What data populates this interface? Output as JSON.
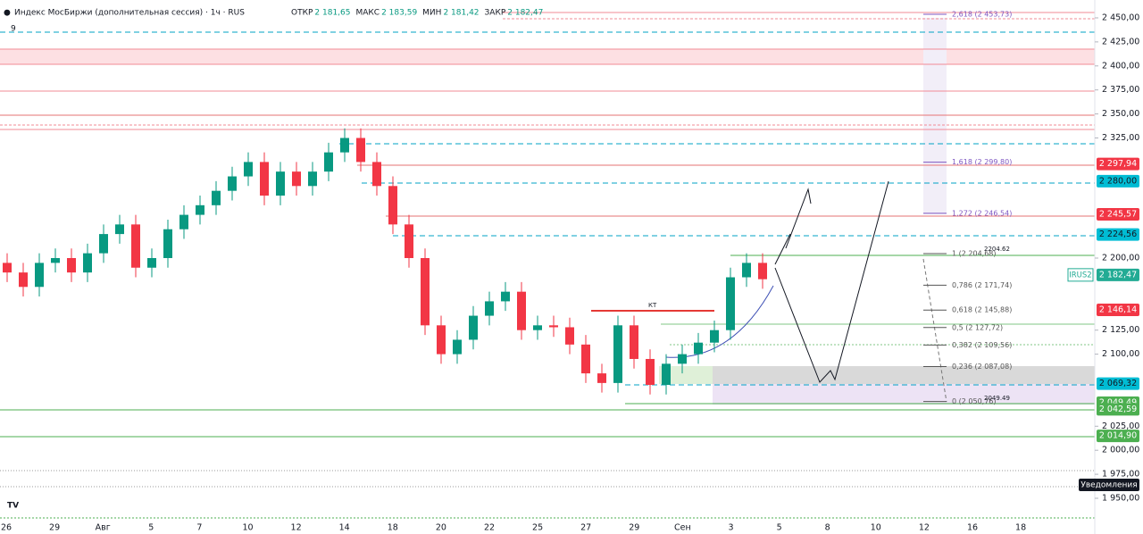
{
  "chart_data": {
    "type": "candlestick",
    "title": "Индекс МосБиржи (дополнительная сессия) · 1ч · RUS",
    "ohlc_header": [
      {
        "name": "ОТКР",
        "label": "2 181,65"
      },
      {
        "name": "МАКС",
        "label": "2 183,59"
      },
      {
        "name": "МИН",
        "label": "2 181,42"
      },
      {
        "name": "ЗАКР",
        "label": "2 182,47"
      }
    ],
    "indicator_count": "9",
    "categories": [
      "26",
      "29",
      "Авг",
      "5",
      "7",
      "10",
      "12",
      "14",
      "18",
      "20",
      "22",
      "25",
      "27",
      "29",
      "Сен",
      "3",
      "5",
      "8",
      "10",
      "12",
      "16",
      "18"
    ],
    "up_color": "#089981",
    "down_color": "#f23645",
    "open": [
      2195,
      2185,
      2170,
      2195,
      2200,
      2185,
      2205,
      2225,
      2235,
      2190,
      2200,
      2230,
      2245,
      2255,
      2270,
      2285,
      2300,
      2265,
      2290,
      2275,
      2290,
      2310,
      2325,
      2300,
      2275,
      2235,
      2200,
      2130,
      2100,
      2115,
      2140,
      2155,
      2165,
      2125,
      2130,
      2128,
      2110,
      2080,
      2070,
      2130,
      2095,
      2068,
      2090,
      2100,
      2112,
      2125,
      2180,
      2195
    ],
    "high": [
      2205,
      2195,
      2205,
      2210,
      2210,
      2215,
      2235,
      2245,
      2245,
      2210,
      2240,
      2255,
      2265,
      2280,
      2295,
      2310,
      2310,
      2300,
      2300,
      2300,
      2320,
      2335,
      2335,
      2310,
      2285,
      2245,
      2210,
      2140,
      2125,
      2150,
      2165,
      2175,
      2175,
      2140,
      2140,
      2138,
      2120,
      2090,
      2140,
      2140,
      2105,
      2100,
      2110,
      2122,
      2135,
      2190,
      2205,
      2205
    ],
    "low": [
      2175,
      2160,
      2160,
      2185,
      2175,
      2175,
      2195,
      2215,
      2180,
      2180,
      2190,
      2220,
      2235,
      2245,
      2260,
      2275,
      2255,
      2255,
      2265,
      2265,
      2280,
      2300,
      2290,
      2265,
      2225,
      2190,
      2120,
      2090,
      2090,
      2105,
      2130,
      2145,
      2115,
      2115,
      2118,
      2100,
      2070,
      2060,
      2060,
      2085,
      2058,
      2058,
      2080,
      2090,
      2102,
      2115,
      2170,
      2168
    ],
    "close": [
      2185,
      2170,
      2195,
      2200,
      2185,
      2205,
      2225,
      2235,
      2190,
      2200,
      2230,
      2245,
      2255,
      2270,
      2285,
      2300,
      2265,
      2290,
      2275,
      2290,
      2310,
      2325,
      2300,
      2275,
      2235,
      2200,
      2130,
      2100,
      2115,
      2140,
      2155,
      2165,
      2125,
      2130,
      2128,
      2110,
      2080,
      2070,
      2130,
      2095,
      2068,
      2090,
      2100,
      2112,
      2125,
      2180,
      2195,
      2178
    ],
    "ylim": [
      1950,
      2450
    ],
    "yticks": [
      {
        "value": 2450,
        "label": "2 450,00"
      },
      {
        "value": 2425,
        "label": "2 425,00"
      },
      {
        "value": 2400,
        "label": "2 400,00"
      },
      {
        "value": 2375,
        "label": "2 375,00"
      },
      {
        "value": 2350,
        "label": "2 350,00"
      },
      {
        "value": 2325,
        "label": "2 325,00"
      },
      {
        "value": 2200,
        "label": "2 200,00"
      },
      {
        "value": 2125,
        "label": "2 125,00"
      },
      {
        "value": 2100,
        "label": "2 100,00"
      },
      {
        "value": 2025,
        "label": "2 025,00"
      },
      {
        "value": 2000,
        "label": "2 000,00"
      },
      {
        "value": 1975,
        "label": "1 975,00"
      },
      {
        "value": 1950,
        "label": "1 950,00"
      }
    ],
    "price_labels": [
      {
        "value": 2297.94,
        "label": "2 297,94",
        "color": "#f23645"
      },
      {
        "value": 2280,
        "label": "2 280,00",
        "color": "#00bcd4"
      },
      {
        "value": 2245.57,
        "label": "2 245,57",
        "color": "#f23645"
      },
      {
        "value": 2224.56,
        "label": "2 224,56",
        "color": "#00bcd4"
      },
      {
        "value": 2182.47,
        "label": "2 182,47",
        "color": "#22ab94",
        "name": "IRUS2"
      },
      {
        "value": 2146.14,
        "label": "2 146,14",
        "color": "#f23645"
      },
      {
        "value": 2069.32,
        "label": "2 069,32",
        "color": "#00bcd4"
      },
      {
        "value": 2049.49,
        "label": "2 049,49",
        "color": "#4caf50"
      },
      {
        "value": 2042.59,
        "label": "2 042,59",
        "color": "#4caf50"
      },
      {
        "value": 2014.9,
        "label": "2 014,90",
        "color": "#4caf50"
      }
    ],
    "fib_levels": [
      {
        "value": 2453.73,
        "label": "2,618 (2 453,73)"
      },
      {
        "value": 2299.8,
        "label": "1,618 (2 299,80)"
      },
      {
        "value": 2246.54,
        "label": "1,272 (2 246,54)"
      },
      {
        "value": 2204.68,
        "label": "1 (2 204,68)"
      },
      {
        "value": 2171.74,
        "label": "0,786 (2 171,74)"
      },
      {
        "value": 2145.88,
        "label": "0,618 (2 145,88)"
      },
      {
        "value": 2127.72,
        "label": "0,5 (2 127,72)"
      },
      {
        "value": 2109.56,
        "label": "0,382 (2 109,56)"
      },
      {
        "value": 2087.08,
        "label": "0,236 (2 087,08)"
      },
      {
        "value": 2050.76,
        "label": "0 (2 050,76)"
      }
    ],
    "annotations": [
      {
        "value": 2204.62,
        "label": "2204.62"
      },
      {
        "value": 2049.49,
        "label": "2049.49"
      },
      {
        "value": 2146.14,
        "label": "КТ"
      }
    ],
    "notification": "Уведомления"
  }
}
